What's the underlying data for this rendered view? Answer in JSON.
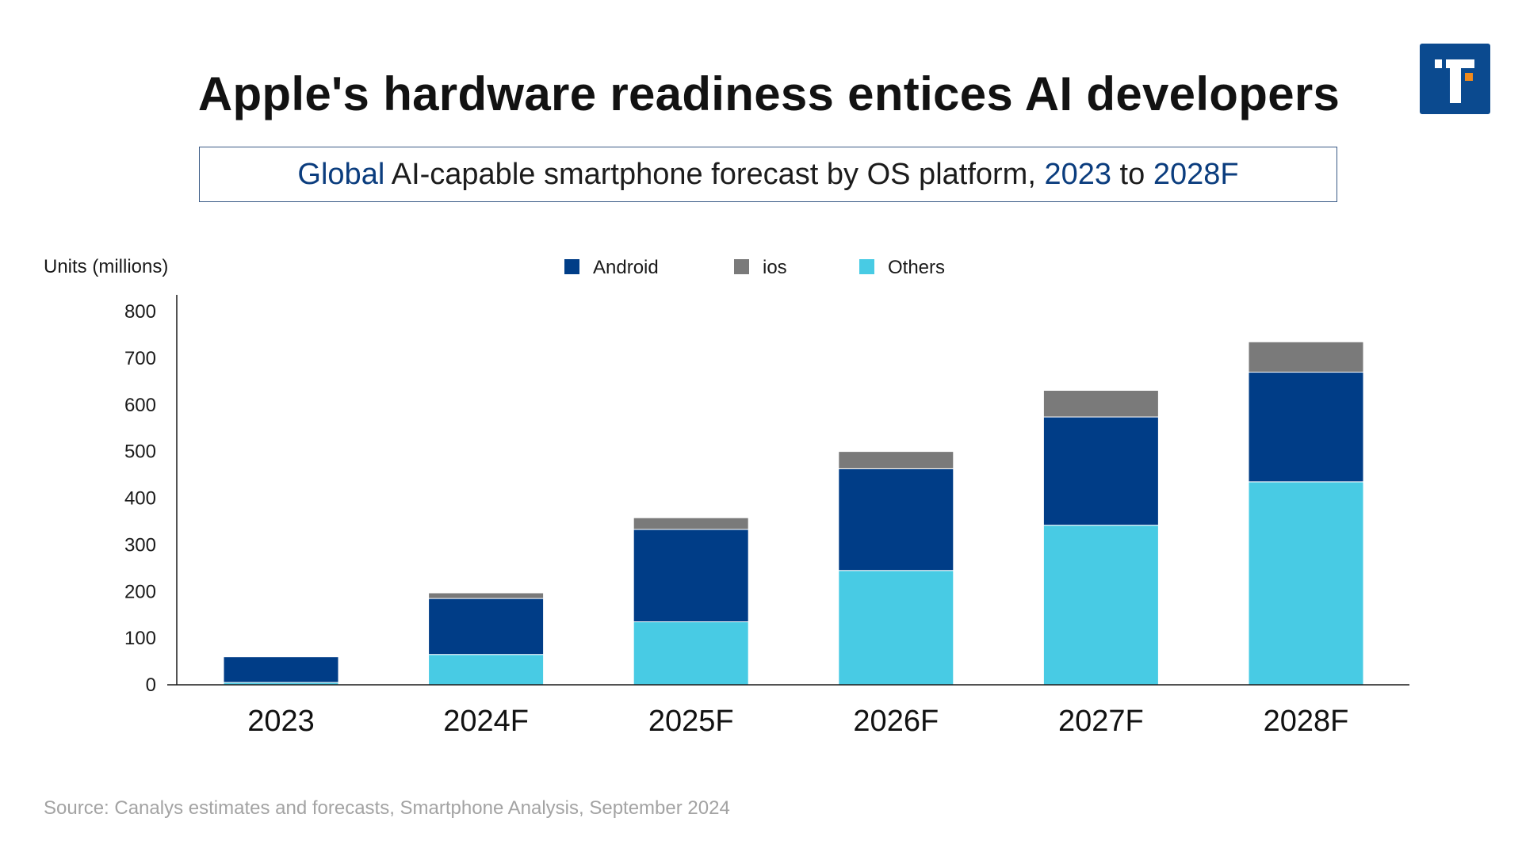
{
  "header": {
    "title": "Apple's hardware readiness entices AI developers"
  },
  "subtitle": {
    "part1": "Global",
    "part2": " AI-capable smartphone forecast by OS platform, ",
    "part3": "2023",
    "part4": " to ",
    "part5": "2028F"
  },
  "logo": {
    "icon": "t-letter-logo-icon",
    "color": "#0b4a8f",
    "accent": "#f08a1c"
  },
  "source": "Source: Canalys estimates and forecasts, Smartphone Analysis, September 2024",
  "chart_data": {
    "type": "bar",
    "stacked": true,
    "title": "Global AI-capable smartphone forecast by OS platform, 2023 to 2028F",
    "ylabel": "Units (millions)",
    "xlabel": "",
    "ylim": [
      0,
      800
    ],
    "yticks": [
      0,
      100,
      200,
      300,
      400,
      500,
      600,
      700,
      800
    ],
    "grid": false,
    "legend_position": "top-center",
    "categories": [
      "2023",
      "2024F",
      "2025F",
      "2026F",
      "2027F",
      "2028F"
    ],
    "legend_order": [
      "Android",
      "ios",
      "Others"
    ],
    "series": [
      {
        "name": "Others",
        "color": "#48cbe4",
        "values": [
          5,
          65,
          135,
          245,
          342,
          435
        ]
      },
      {
        "name": "Android",
        "color": "#003d87",
        "values": [
          55,
          120,
          198,
          218,
          232,
          235
        ]
      },
      {
        "name": "ios",
        "color": "#7a7a7a",
        "values": [
          0,
          12,
          25,
          37,
          57,
          65
        ]
      }
    ]
  }
}
